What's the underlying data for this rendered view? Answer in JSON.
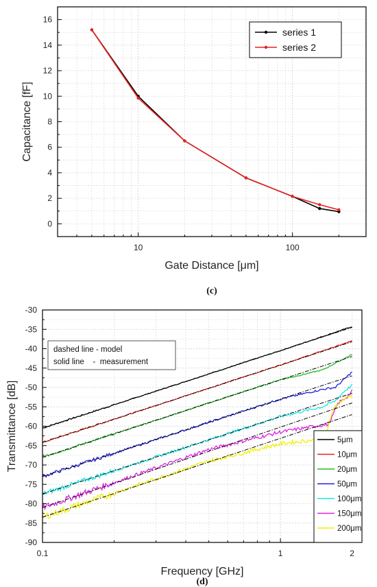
{
  "chart_data": [
    {
      "type": "line",
      "panel_label": "(c)",
      "xlabel": "Gate Distance [μm]",
      "ylabel": "Capacitance [fF]",
      "xscale": "log",
      "xlim": [
        3,
        300
      ],
      "ylim": [
        -1,
        17
      ],
      "xticks": [
        10,
        100
      ],
      "xtick_labels": [
        "10",
        "100"
      ],
      "yticks": [
        0,
        2,
        4,
        6,
        8,
        10,
        12,
        14,
        16
      ],
      "grid": true,
      "legend_position": "top-right",
      "x": [
        5,
        10,
        20,
        50,
        100,
        150,
        200
      ],
      "series": [
        {
          "name": "series 1",
          "color": "#000000",
          "values": [
            15.2,
            10.0,
            6.5,
            3.6,
            2.15,
            1.2,
            0.95
          ]
        },
        {
          "name": "series 2",
          "color": "#e8211f",
          "values": [
            15.2,
            9.85,
            6.5,
            3.6,
            2.15,
            1.5,
            1.1
          ]
        }
      ]
    },
    {
      "type": "line",
      "panel_label": "(d)",
      "xlabel": "Frequency [GHz]",
      "ylabel": "Transmittance [dB]",
      "xscale": "log",
      "xlim": [
        0.1,
        2.2
      ],
      "ylim": [
        -90,
        -30
      ],
      "xticks": [
        0.1,
        1,
        2
      ],
      "xtick_labels": [
        "0.1",
        "1",
        "2"
      ],
      "yticks": [
        -90,
        -85,
        -80,
        -75,
        -70,
        -65,
        -60,
        -55,
        -50,
        -45,
        -40,
        -35,
        -30
      ],
      "grid": true,
      "legend_position": "bottom-right",
      "annotation": [
        "dashed line - model",
        "solid line    -  measurement"
      ],
      "series": [
        {
          "name": "5μm",
          "color": "#000000",
          "model": [
            [
              0.1,
              -60.5
            ],
            [
              2,
              -34.5
            ]
          ],
          "measurement": [
            [
              0.1,
              -60.5
            ],
            [
              0.5,
              -46.5
            ],
            [
              1,
              -40.5
            ],
            [
              2,
              -34.3
            ]
          ]
        },
        {
          "name": "10μm",
          "color": "#e8211f",
          "model": [
            [
              0.1,
              -64.2
            ],
            [
              2,
              -38.2
            ]
          ],
          "measurement": [
            [
              0.1,
              -64.2
            ],
            [
              0.5,
              -50.2
            ],
            [
              1,
              -44.2
            ],
            [
              2,
              -38.0
            ]
          ]
        },
        {
          "name": "20μm",
          "color": "#22bb22",
          "model": [
            [
              0.1,
              -68.0
            ],
            [
              2,
              -42.0
            ]
          ],
          "measurement": [
            [
              0.1,
              -68.0
            ],
            [
              0.5,
              -54.0
            ],
            [
              1,
              -48.0
            ],
            [
              1.5,
              -45.5
            ],
            [
              2,
              -41.5
            ]
          ]
        },
        {
          "name": "50μm",
          "color": "#1f1fdd",
          "model": [
            [
              0.1,
              -73.0
            ],
            [
              2,
              -47.0
            ]
          ],
          "measurement": [
            [
              0.1,
              -73.0
            ],
            [
              0.5,
              -59.0
            ],
            [
              1,
              -53.0
            ],
            [
              1.5,
              -50.5
            ],
            [
              1.7,
              -50.0
            ],
            [
              2,
              -46.0
            ]
          ]
        },
        {
          "name": "100μm",
          "color": "#19e6e6",
          "model": [
            [
              0.1,
              -77.5
            ],
            [
              2,
              -51.5
            ]
          ],
          "measurement": [
            [
              0.1,
              -77.5
            ],
            [
              0.5,
              -63.5
            ],
            [
              1,
              -57.5
            ],
            [
              1.5,
              -55.0
            ],
            [
              1.7,
              -53.5
            ],
            [
              1.85,
              -51.0
            ],
            [
              2,
              -49.5
            ]
          ]
        },
        {
          "name": "150μm",
          "color": "#e020e0",
          "model": [
            [
              0.1,
              -81.0
            ],
            [
              2,
              -54.0
            ]
          ],
          "measurement": [
            [
              0.1,
              -81.0
            ],
            [
              0.5,
              -66.0
            ],
            [
              1,
              -61.5
            ],
            [
              1.4,
              -60.0
            ],
            [
              1.6,
              -59.5
            ],
            [
              1.75,
              -54.0
            ],
            [
              1.9,
              -52.5
            ],
            [
              2,
              -51.0
            ]
          ]
        },
        {
          "name": "200μm",
          "color": "#f0f000",
          "model": [
            [
              0.1,
              -83.5
            ],
            [
              2,
              -57.0
            ]
          ],
          "measurement": [
            [
              0.1,
              -83.5
            ],
            [
              0.5,
              -69.0
            ],
            [
              1,
              -64.5
            ],
            [
              1.4,
              -63.5
            ],
            [
              1.55,
              -62.5
            ],
            [
              1.68,
              -55.0
            ],
            [
              1.8,
              -53.5
            ],
            [
              2,
              -52.0
            ]
          ]
        }
      ]
    }
  ]
}
